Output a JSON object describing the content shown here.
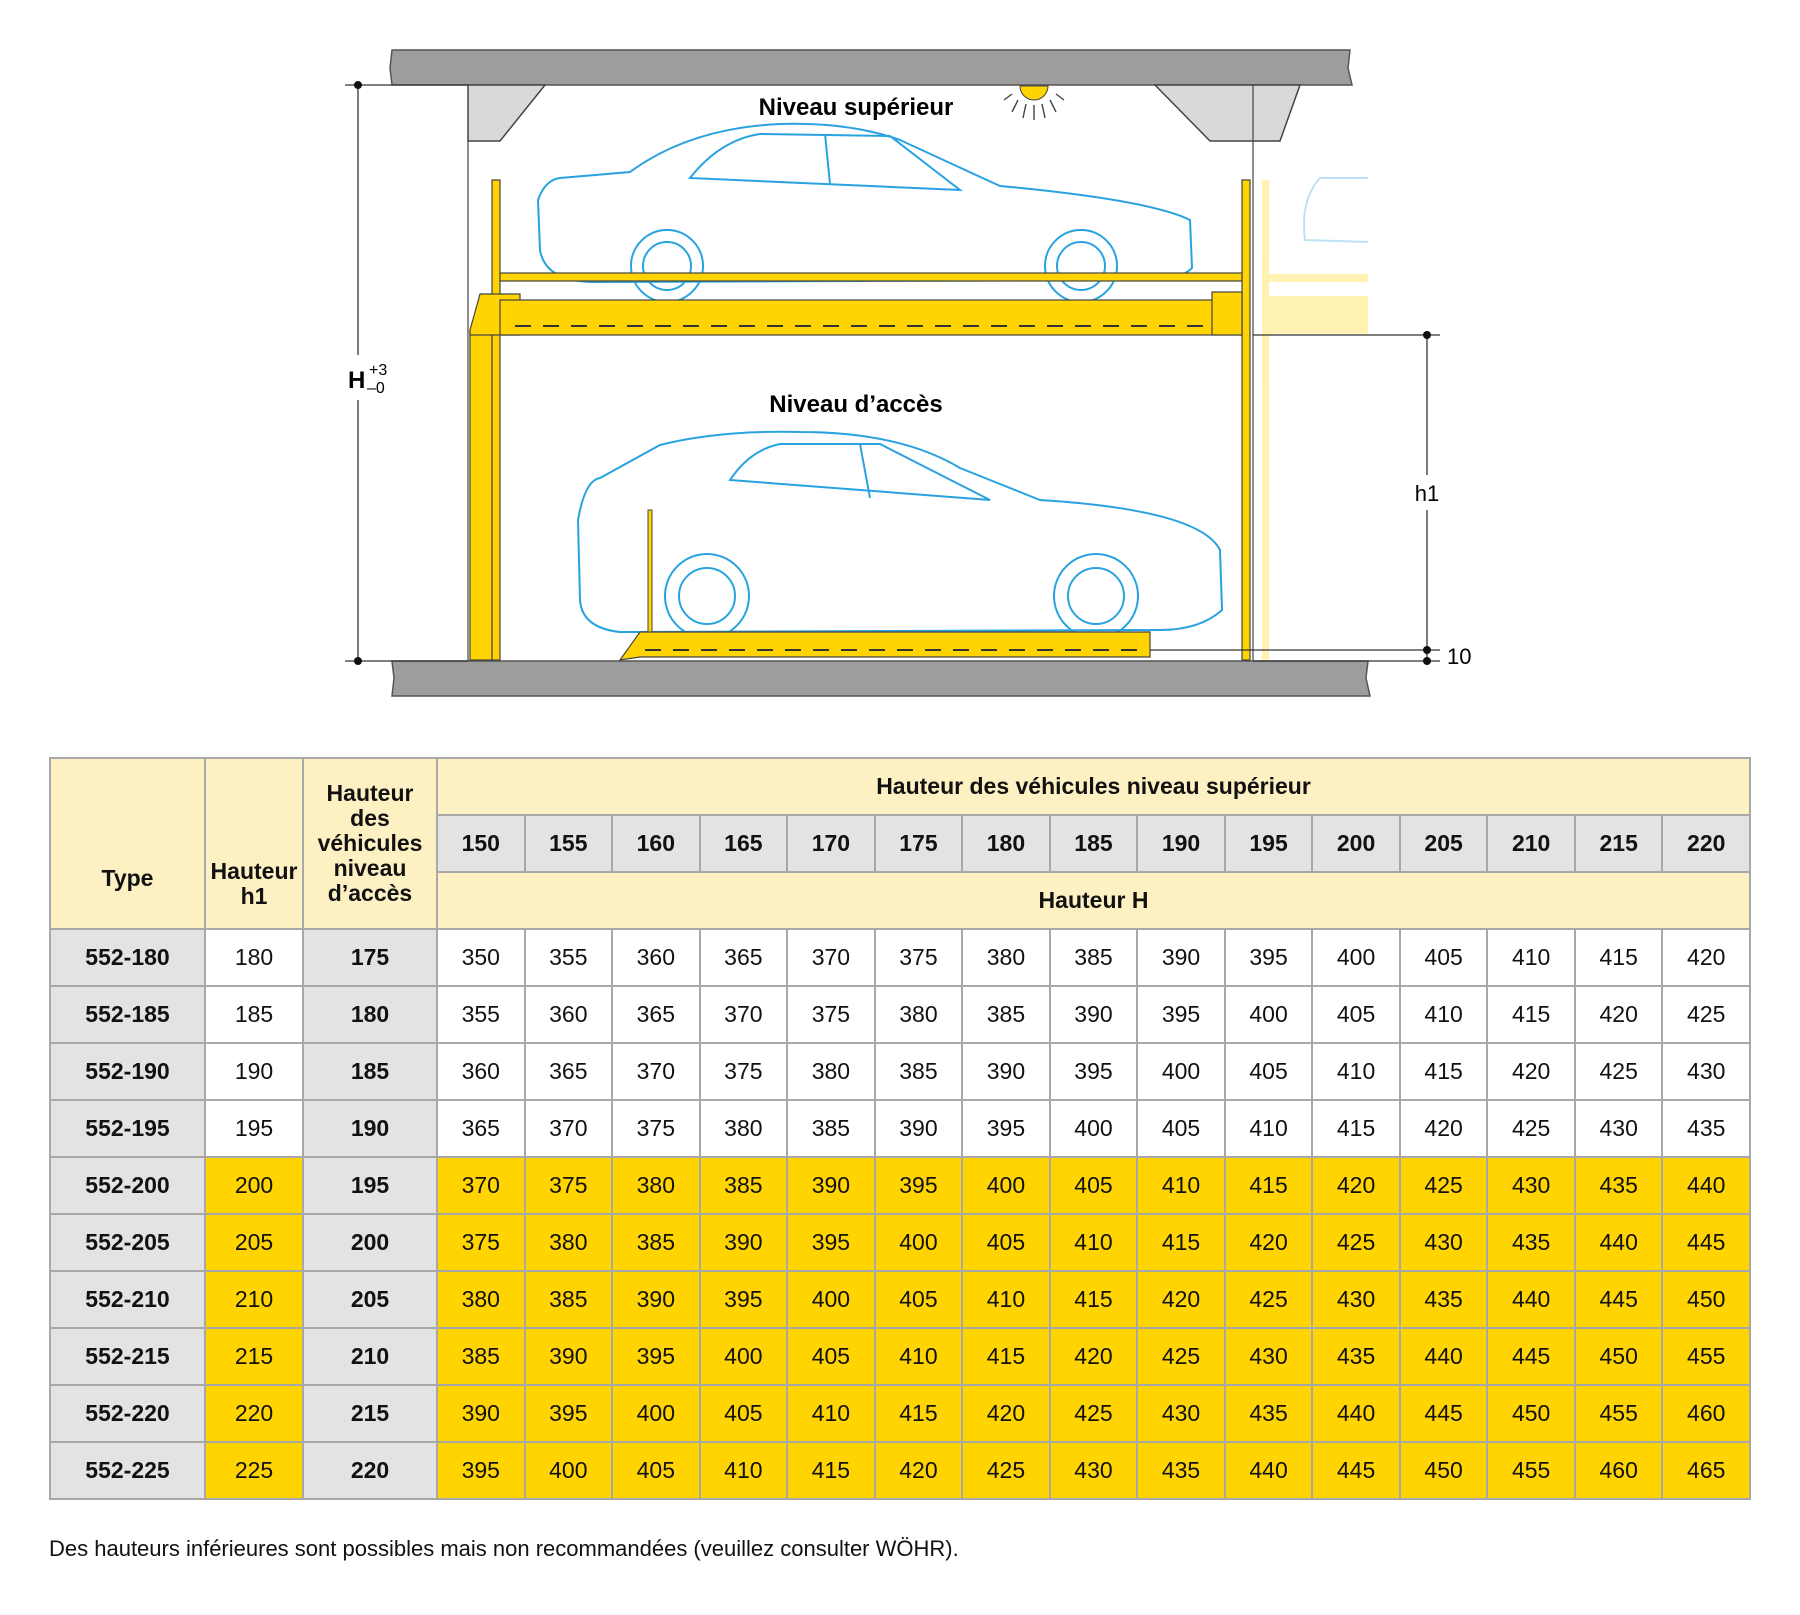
{
  "diagram": {
    "label_upper": "Niveau supérieur",
    "label_access": "Niveau d’accès",
    "dim_H": "H",
    "dim_H_plus": "+3",
    "dim_H_minus": "–0",
    "dim_h1": "h1",
    "dim_10": "10",
    "colors": {
      "slab": "#9d9d9d",
      "lift": "#ffd400",
      "car_line": "#29a3e0",
      "bracket": "#d9d9d9"
    }
  },
  "table": {
    "col_type": "Type",
    "col_h1": "Hauteur h1",
    "col_access": "Hauteur des véhicules niveau d’accès",
    "group_header": "Hauteur des véhicules niveau supérieur",
    "sub_header": "Hauteur H",
    "upper_heights": [
      "150",
      "155",
      "160",
      "165",
      "170",
      "175",
      "180",
      "185",
      "190",
      "195",
      "200",
      "205",
      "210",
      "215",
      "220"
    ],
    "rows": [
      {
        "type": "552-180",
        "h1": "180",
        "access": "175",
        "highlight": false,
        "values": [
          "350",
          "355",
          "360",
          "365",
          "370",
          "375",
          "380",
          "385",
          "390",
          "395",
          "400",
          "405",
          "410",
          "415",
          "420"
        ]
      },
      {
        "type": "552-185",
        "h1": "185",
        "access": "180",
        "highlight": false,
        "values": [
          "355",
          "360",
          "365",
          "370",
          "375",
          "380",
          "385",
          "390",
          "395",
          "400",
          "405",
          "410",
          "415",
          "420",
          "425"
        ]
      },
      {
        "type": "552-190",
        "h1": "190",
        "access": "185",
        "highlight": false,
        "values": [
          "360",
          "365",
          "370",
          "375",
          "380",
          "385",
          "390",
          "395",
          "400",
          "405",
          "410",
          "415",
          "420",
          "425",
          "430"
        ]
      },
      {
        "type": "552-195",
        "h1": "195",
        "access": "190",
        "highlight": false,
        "values": [
          "365",
          "370",
          "375",
          "380",
          "385",
          "390",
          "395",
          "400",
          "405",
          "410",
          "415",
          "420",
          "425",
          "430",
          "435"
        ]
      },
      {
        "type": "552-200",
        "h1": "200",
        "access": "195",
        "highlight": true,
        "values": [
          "370",
          "375",
          "380",
          "385",
          "390",
          "395",
          "400",
          "405",
          "410",
          "415",
          "420",
          "425",
          "430",
          "435",
          "440"
        ]
      },
      {
        "type": "552-205",
        "h1": "205",
        "access": "200",
        "highlight": true,
        "values": [
          "375",
          "380",
          "385",
          "390",
          "395",
          "400",
          "405",
          "410",
          "415",
          "420",
          "425",
          "430",
          "435",
          "440",
          "445"
        ]
      },
      {
        "type": "552-210",
        "h1": "210",
        "access": "205",
        "highlight": true,
        "values": [
          "380",
          "385",
          "390",
          "395",
          "400",
          "405",
          "410",
          "415",
          "420",
          "425",
          "430",
          "435",
          "440",
          "445",
          "450"
        ]
      },
      {
        "type": "552-215",
        "h1": "215",
        "access": "210",
        "highlight": true,
        "values": [
          "385",
          "390",
          "395",
          "400",
          "405",
          "410",
          "415",
          "420",
          "425",
          "430",
          "435",
          "440",
          "445",
          "450",
          "455"
        ]
      },
      {
        "type": "552-220",
        "h1": "220",
        "access": "215",
        "highlight": true,
        "values": [
          "390",
          "395",
          "400",
          "405",
          "410",
          "415",
          "420",
          "425",
          "430",
          "435",
          "440",
          "445",
          "450",
          "455",
          "460"
        ]
      },
      {
        "type": "552-225",
        "h1": "225",
        "access": "220",
        "highlight": true,
        "values": [
          "395",
          "400",
          "405",
          "410",
          "415",
          "420",
          "425",
          "430",
          "435",
          "440",
          "445",
          "450",
          "455",
          "460",
          "465"
        ]
      }
    ]
  },
  "note": "Des hauteurs inférieures sont possibles mais non recommandées (veuillez consulter WÖHR)."
}
